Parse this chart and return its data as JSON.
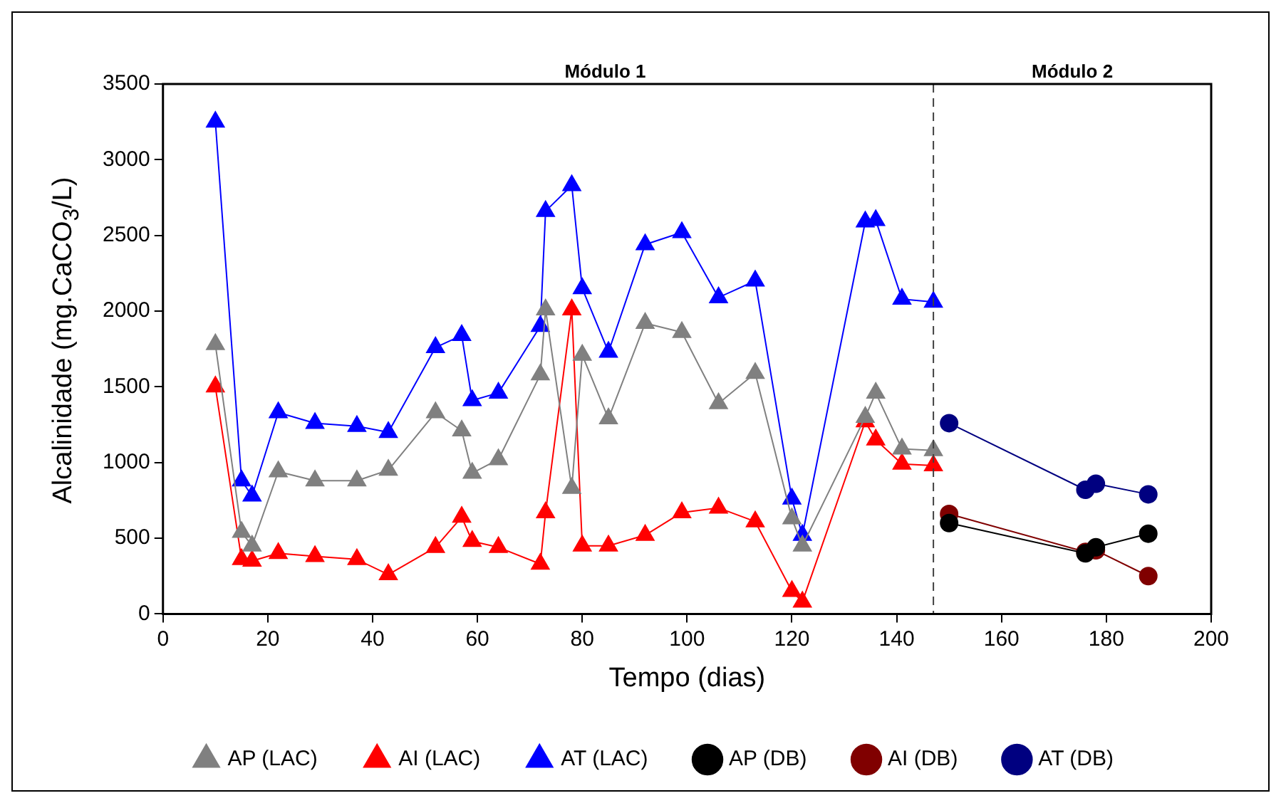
{
  "chart_data": {
    "type": "line",
    "xlabel": "Tempo (dias)",
    "ylabel": "Alcalinidade (mg.CaCO$_{3}$/L)",
    "xlim": [
      0,
      200
    ],
    "xticks": [
      0,
      20,
      40,
      60,
      80,
      100,
      120,
      140,
      160,
      180,
      200
    ],
    "ylim": [
      0,
      3500
    ],
    "yticks": [
      0,
      500,
      1000,
      1500,
      2000,
      2500,
      3000,
      3500
    ],
    "grid": false,
    "legend": "bottom",
    "line_style": "solid",
    "annotations": [
      "Módulo 1",
      "Módulo 2"
    ],
    "ref_lines": [
      {
        "axis": "x",
        "value": 147,
        "color": "#404040",
        "line_style": "dashed"
      }
    ],
    "series": [
      {
        "name": "AP (LAC)",
        "color": "#808080",
        "marker": "triangle",
        "x": [
          10,
          15,
          17,
          22,
          29,
          37,
          43,
          52,
          57,
          59,
          64,
          72,
          73,
          78,
          80,
          85,
          92,
          99,
          106,
          113,
          120,
          122,
          134,
          136,
          141,
          147
        ],
        "values": [
          1780,
          540,
          450,
          940,
          880,
          880,
          950,
          1330,
          1210,
          930,
          1020,
          1580,
          2010,
          830,
          1710,
          1290,
          1920,
          1860,
          1390,
          1590,
          630,
          450,
          1300,
          1460,
          1090,
          1080
        ]
      },
      {
        "name": "AI (LAC)",
        "color": "#ff0000",
        "marker": "triangle",
        "x": [
          10,
          15,
          17,
          22,
          29,
          37,
          43,
          52,
          57,
          59,
          64,
          72,
          73,
          78,
          80,
          85,
          92,
          99,
          106,
          113,
          120,
          122,
          134,
          136,
          141,
          147
        ],
        "values": [
          1500,
          360,
          350,
          400,
          380,
          360,
          260,
          440,
          640,
          480,
          440,
          330,
          670,
          2010,
          450,
          450,
          520,
          670,
          700,
          610,
          150,
          80,
          1270,
          1150,
          990,
          980
        ]
      },
      {
        "name": "AT (LAC)",
        "color": "#0000ff",
        "marker": "triangle",
        "x": [
          10,
          15,
          17,
          22,
          29,
          37,
          43,
          52,
          57,
          59,
          64,
          72,
          73,
          78,
          80,
          85,
          92,
          99,
          106,
          113,
          120,
          122,
          134,
          136,
          141,
          147
        ],
        "values": [
          3250,
          880,
          780,
          1330,
          1260,
          1240,
          1200,
          1760,
          1840,
          1410,
          1460,
          1900,
          2660,
          2830,
          2150,
          1730,
          2440,
          2520,
          2090,
          2200,
          760,
          520,
          2590,
          2600,
          2080,
          2060
        ]
      },
      {
        "name": "AP (DB)",
        "color": "#000000",
        "marker": "circle",
        "x": [
          150,
          176,
          178,
          188
        ],
        "values": [
          600,
          400,
          440,
          530
        ]
      },
      {
        "name": "AI (DB)",
        "color": "#800000",
        "marker": "circle",
        "x": [
          150,
          176,
          178,
          188
        ],
        "values": [
          660,
          410,
          420,
          250
        ]
      },
      {
        "name": "AT (DB)",
        "color": "#000080",
        "marker": "circle",
        "x": [
          150,
          176,
          178,
          188
        ],
        "values": [
          1260,
          820,
          860,
          790
        ]
      }
    ]
  }
}
